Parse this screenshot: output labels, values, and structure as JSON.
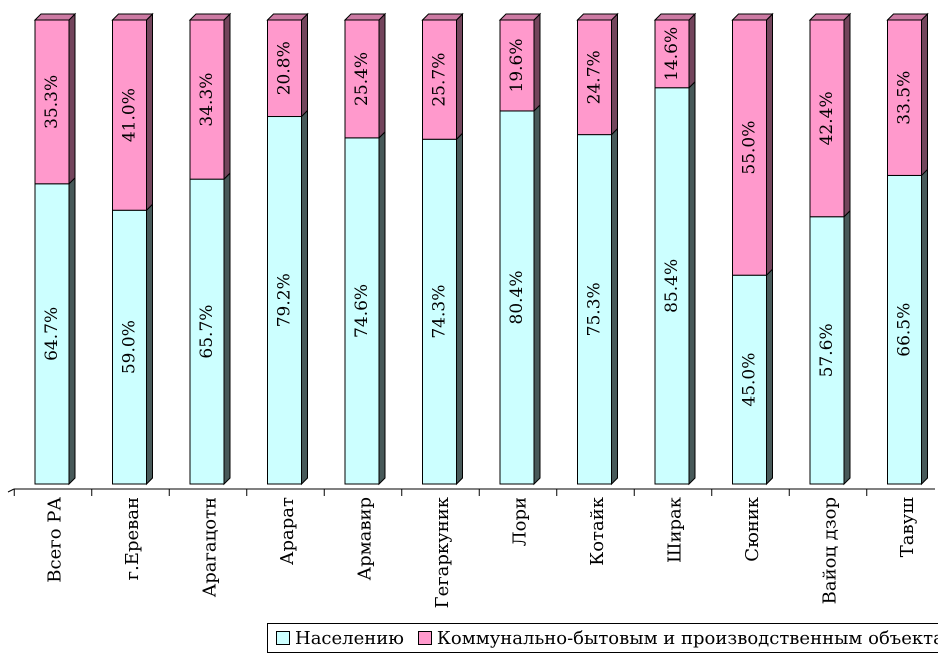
{
  "chart_data": {
    "type": "bar",
    "stacked": true,
    "percent_stacked": true,
    "categories": [
      "Всего РА",
      "г.Ереван",
      "Арагацотн",
      "Арарат",
      "Армавир",
      "Гегаркуник",
      "Лори",
      "Котайк",
      "Ширак",
      "Сюник",
      "Вайоц дзор",
      "Тавуш"
    ],
    "series": [
      {
        "name": "Населению",
        "color": "#ccffff",
        "values": [
          64.7,
          59.0,
          65.7,
          79.2,
          74.6,
          74.3,
          80.4,
          75.3,
          85.4,
          45.0,
          57.6,
          66.5
        ],
        "labels": [
          "64.7%",
          "59.0%",
          "65.7%",
          "79.2%",
          "74.6%",
          "74.3%",
          "80.4%",
          "75.3%",
          "85.4%",
          "45.0%",
          "57.6%",
          "66.5%"
        ]
      },
      {
        "name": "Коммунально-бытовым и производственным объектам",
        "color": "#ff99cc",
        "values": [
          35.3,
          41.0,
          34.3,
          20.8,
          25.4,
          25.7,
          19.6,
          24.7,
          14.6,
          55.0,
          42.4,
          33.5
        ],
        "labels": [
          "35.3%",
          "41.0%",
          "34.3%",
          "20.8%",
          "25.4%",
          "25.7%",
          "19.6%",
          "24.7%",
          "14.6%",
          "55.0%",
          "42.4%",
          "33.5%"
        ]
      }
    ],
    "ylim": [
      0,
      100
    ],
    "legend_position": "bottom",
    "grid": false
  }
}
